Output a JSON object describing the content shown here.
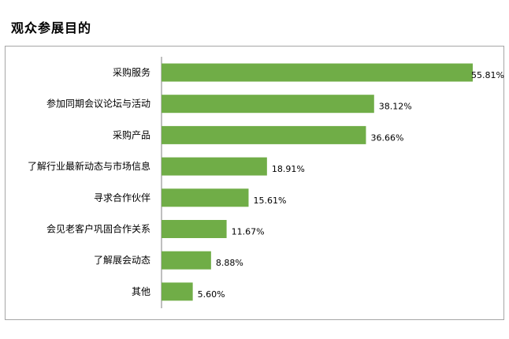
{
  "header": {
    "title": "观众参展目的"
  },
  "chart_data": {
    "type": "bar",
    "orientation": "horizontal",
    "title": "",
    "xlabel": "",
    "ylabel": "",
    "categories": [
      "采购服务",
      "参加同期会议论坛与活动",
      "采购产品",
      "了解行业最新动态与市场信息",
      "寻求合作伙伴",
      "会见老客户巩固合作关系",
      "了解展会动态",
      "其他"
    ],
    "values": [
      55.81,
      38.12,
      36.66,
      18.91,
      15.61,
      11.67,
      8.88,
      5.6
    ],
    "value_labels": [
      "55.81%",
      "38.12%",
      "36.66%",
      "18.91%",
      "15.61%",
      "11.67%",
      "8.88%",
      "5.60%"
    ],
    "xlim": [
      0,
      55.81
    ],
    "grid": false,
    "legend": "none",
    "bar_color": "#70ad47",
    "axis_color": "#7f7f7f"
  }
}
